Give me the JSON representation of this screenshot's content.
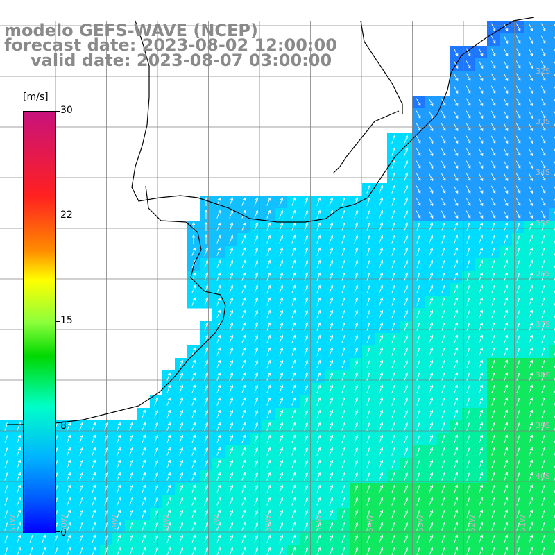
{
  "header": {
    "model": "modelo GEFS-WAVE (NCEP)",
    "forecast": "forecast date: 2023-08-02 12:00:00",
    "valid": "valid date: 2023-08-07 03:00:00"
  },
  "colorbar": {
    "unit": "[m/s]",
    "ticks": [
      "30",
      "22",
      "15",
      "8",
      "0"
    ],
    "colors": [
      "#c8127c",
      "#ff2020",
      "#ff8c00",
      "#ffff00",
      "#00d800",
      "#00ffc8",
      "#00b4ff",
      "#0000ff"
    ]
  },
  "map": {
    "lat_labels": [
      "32S",
      "33S",
      "34S",
      "35S",
      "36S",
      "37S",
      "38S",
      "39S",
      "40S"
    ],
    "lon_labels": [
      "61W",
      "60W",
      "59W",
      "58W",
      "57W",
      "56W",
      "55W",
      "54W",
      "53W",
      "52W",
      "51W"
    ],
    "land_color": "#ffffff",
    "grid_color": "#808080"
  }
}
